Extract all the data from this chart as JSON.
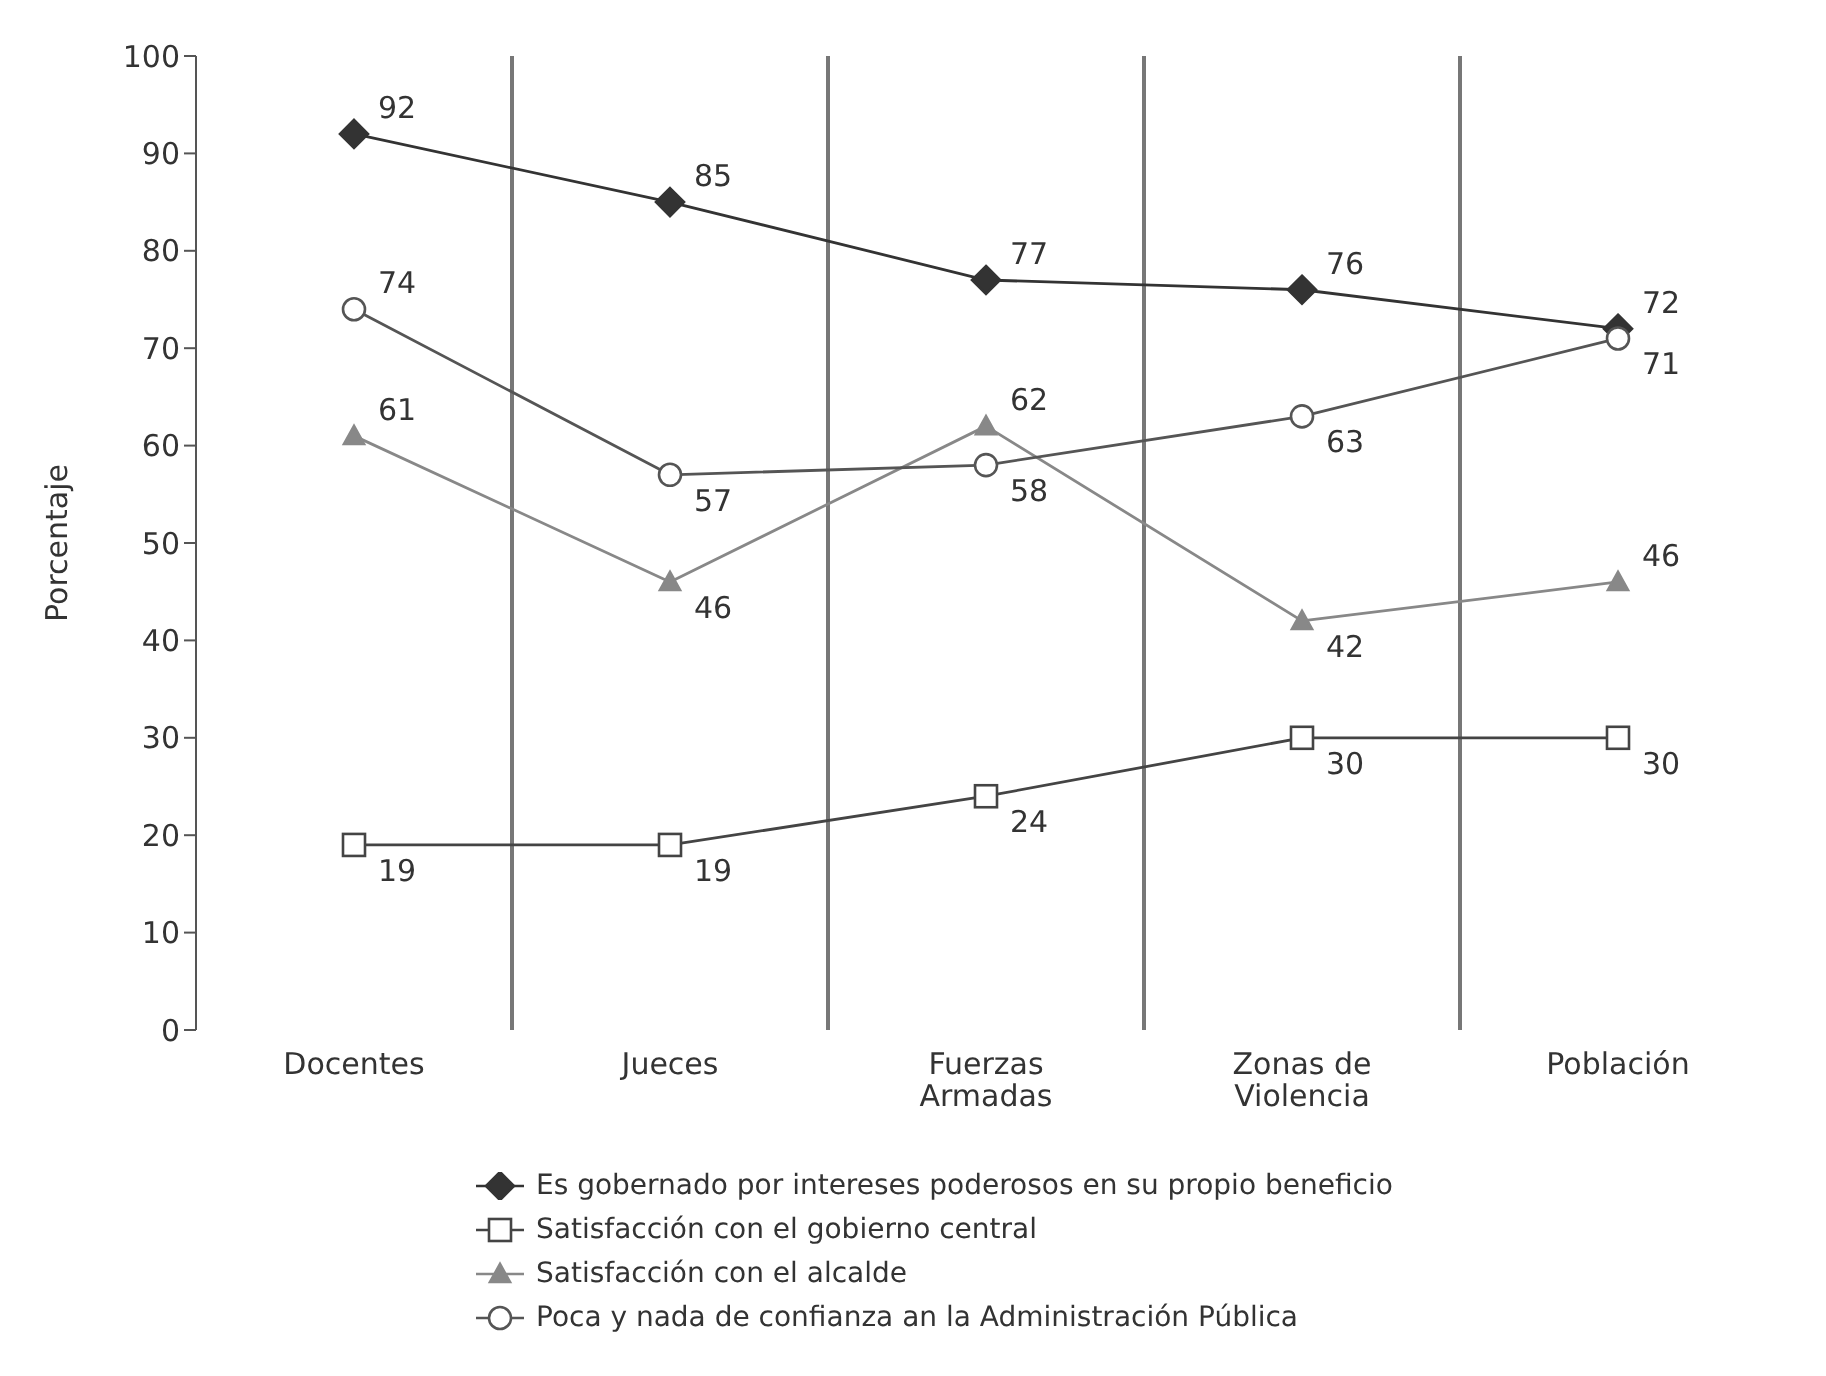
{
  "chart_data": {
    "type": "line",
    "ylabel": "Porcentaje",
    "categories": [
      "Docentes",
      "Jueces",
      "Fuerzas Armadas",
      "Zonas de Violencia",
      "Población"
    ],
    "series": [
      {
        "name": "Es gobernado por intereses poderosos en su propio beneficio",
        "color": "#333333",
        "marker": "diamond",
        "values": [
          92,
          85,
          77,
          76,
          72
        ]
      },
      {
        "name": "Satisfacción con el gobierno central",
        "color": "#444444",
        "marker": "square",
        "values": [
          19,
          19,
          24,
          30,
          30
        ]
      },
      {
        "name": "Satisfacción con el alcalde",
        "color": "#888888",
        "marker": "triangle",
        "values": [
          61,
          46,
          62,
          42,
          46
        ]
      },
      {
        "name": "Poca y nada de confianza an la Administración Pública",
        "color": "#555555",
        "marker": "circle",
        "values": [
          74,
          57,
          58,
          63,
          71
        ]
      }
    ],
    "ylim": [
      0,
      100
    ],
    "yticks": [
      0,
      10,
      20,
      30,
      40,
      50,
      60,
      70,
      80,
      90,
      100
    ],
    "grid": "x",
    "legend": "bottom",
    "data_labels": true
  }
}
